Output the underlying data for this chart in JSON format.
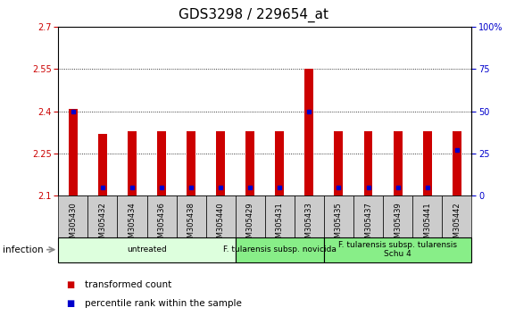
{
  "title": "GDS3298 / 229654_at",
  "samples": [
    "GSM305430",
    "GSM305432",
    "GSM305434",
    "GSM305436",
    "GSM305438",
    "GSM305440",
    "GSM305429",
    "GSM305431",
    "GSM305433",
    "GSM305435",
    "GSM305437",
    "GSM305439",
    "GSM305441",
    "GSM305442"
  ],
  "transformed_count": [
    2.41,
    2.32,
    2.33,
    2.33,
    2.33,
    2.33,
    2.33,
    2.33,
    2.55,
    2.33,
    2.33,
    2.33,
    2.33,
    2.33
  ],
  "percentile_rank": [
    50,
    5,
    5,
    5,
    5,
    5,
    5,
    5,
    50,
    5,
    5,
    5,
    5,
    27
  ],
  "ylim_left": [
    2.1,
    2.7
  ],
  "ylim_right": [
    0,
    100
  ],
  "yticks_left": [
    2.1,
    2.25,
    2.4,
    2.55,
    2.7
  ],
  "yticks_right": [
    0,
    25,
    50,
    75,
    100
  ],
  "bar_color": "#cc0000",
  "dot_color": "#0000cc",
  "background_color": "#ffffff",
  "groups": [
    {
      "label": "untreated",
      "start": 0,
      "end": 6,
      "color": "#ddffdd"
    },
    {
      "label": "F. tularensis subsp. novicida",
      "start": 6,
      "end": 9,
      "color": "#88ee88"
    },
    {
      "label": "F. tularensis subsp. tularensis\nSchu 4",
      "start": 9,
      "end": 14,
      "color": "#88ee88"
    }
  ],
  "infection_label": "infection",
  "legend_items": [
    {
      "label": "transformed count",
      "color": "#cc0000"
    },
    {
      "label": "percentile rank within the sample",
      "color": "#0000cc"
    }
  ],
  "title_fontsize": 11,
  "tick_fontsize": 7,
  "sample_fontsize": 6
}
